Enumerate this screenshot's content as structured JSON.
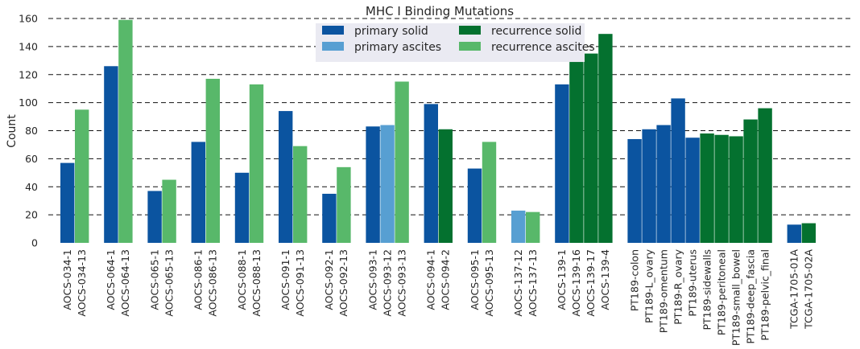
{
  "chart_data": {
    "type": "bar",
    "title": "MHC I Binding Mutations",
    "xlabel": "",
    "ylabel": "Count",
    "ylim": [
      0,
      160
    ],
    "yticks": [
      0,
      20,
      40,
      60,
      80,
      100,
      120,
      140,
      160
    ],
    "grid": true,
    "legend_placement": "top-center",
    "series": [
      {
        "name": "primary solid",
        "color": "#0b54a0"
      },
      {
        "name": "primary ascites",
        "color": "#579fd2"
      },
      {
        "name": "recurrence solid",
        "color": "#04712f"
      },
      {
        "name": "recurrence ascites",
        "color": "#58b86a"
      }
    ],
    "groups": [
      {
        "bars": [
          {
            "label": "AOCS-034-1",
            "value": 57,
            "series": 0
          },
          {
            "label": "AOCS-034-13",
            "value": 95,
            "series": 3
          }
        ]
      },
      {
        "bars": [
          {
            "label": "AOCS-064-1",
            "value": 126,
            "series": 0
          },
          {
            "label": "AOCS-064-13",
            "value": 159,
            "series": 3
          }
        ]
      },
      {
        "bars": [
          {
            "label": "AOCS-065-1",
            "value": 37,
            "series": 0
          },
          {
            "label": "AOCS-065-13",
            "value": 45,
            "series": 3
          }
        ]
      },
      {
        "bars": [
          {
            "label": "AOCS-086-1",
            "value": 72,
            "series": 0
          },
          {
            "label": "AOCS-086-13",
            "value": 117,
            "series": 3
          }
        ]
      },
      {
        "bars": [
          {
            "label": "AOCS-088-1",
            "value": 50,
            "series": 0
          },
          {
            "label": "AOCS-088-13",
            "value": 113,
            "series": 3
          }
        ]
      },
      {
        "bars": [
          {
            "label": "AOCS-091-1",
            "value": 94,
            "series": 0
          },
          {
            "label": "AOCS-091-13",
            "value": 69,
            "series": 3
          }
        ]
      },
      {
        "bars": [
          {
            "label": "AOCS-092-1",
            "value": 35,
            "series": 0
          },
          {
            "label": "AOCS-092-13",
            "value": 54,
            "series": 3
          }
        ]
      },
      {
        "bars": [
          {
            "label": "AOCS-093-1",
            "value": 83,
            "series": 0
          },
          {
            "label": "AOCS-093-12",
            "value": 84,
            "series": 1
          },
          {
            "label": "AOCS-093-13",
            "value": 115,
            "series": 3
          }
        ]
      },
      {
        "bars": [
          {
            "label": "AOCS-094-1",
            "value": 99,
            "series": 0
          },
          {
            "label": "AOCS-094-2",
            "value": 81,
            "series": 2
          }
        ]
      },
      {
        "bars": [
          {
            "label": "AOCS-095-1",
            "value": 53,
            "series": 0
          },
          {
            "label": "AOCS-095-13",
            "value": 72,
            "series": 3
          }
        ]
      },
      {
        "bars": [
          {
            "label": "AOCS-137-12",
            "value": 23,
            "series": 1
          },
          {
            "label": "AOCS-137-13",
            "value": 22,
            "series": 3
          }
        ]
      },
      {
        "bars": [
          {
            "label": "AOCS-139-1",
            "value": 113,
            "series": 0
          },
          {
            "label": "AOCS-139-16",
            "value": 129,
            "series": 2
          },
          {
            "label": "AOCS-139-17",
            "value": 135,
            "series": 2
          },
          {
            "label": "AOCS-139-4",
            "value": 149,
            "series": 2
          }
        ]
      },
      {
        "bars": [
          {
            "label": "PT189-colon",
            "value": 74,
            "series": 0
          },
          {
            "label": "PT189-L_ovary",
            "value": 81,
            "series": 0
          },
          {
            "label": "PT189-omentum",
            "value": 84,
            "series": 0
          },
          {
            "label": "PT189-R_ovary",
            "value": 103,
            "series": 0
          },
          {
            "label": "PT189-uterus",
            "value": 75,
            "series": 0
          },
          {
            "label": "PT189-sidewalls",
            "value": 78,
            "series": 2
          },
          {
            "label": "PT189-peritoneal",
            "value": 77,
            "series": 2
          },
          {
            "label": "PT189-small_bowel",
            "value": 76,
            "series": 2
          },
          {
            "label": "PT189-deep_fascia",
            "value": 88,
            "series": 2
          },
          {
            "label": "PT189-pelvic_final",
            "value": 96,
            "series": 2
          }
        ]
      },
      {
        "bars": [
          {
            "label": "TCGA-1705-01A",
            "value": 13,
            "series": 0
          },
          {
            "label": "TCGA-1705-02A",
            "value": 14,
            "series": 2
          }
        ]
      }
    ]
  }
}
